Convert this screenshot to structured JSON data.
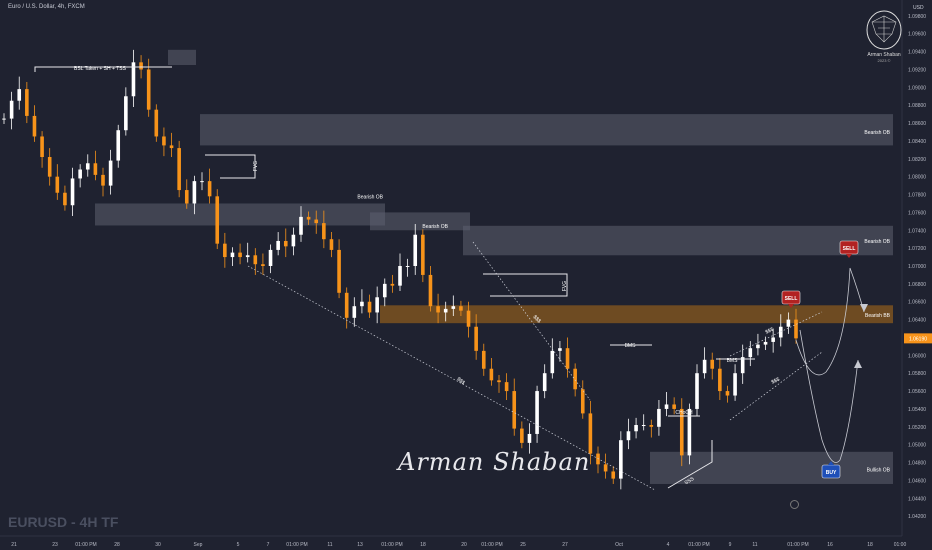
{
  "header": {
    "symbol_title": "Euro / U.S. Dollar, 4h, FXCM",
    "currency": "USD"
  },
  "watermark": "EURUSD - 4H TF",
  "signature": "Arman Shaban",
  "logo": {
    "name": "Arman Shaban",
    "sub": "2023 ©"
  },
  "chart_data": {
    "type": "candlestick",
    "ylim": [
      1.04,
      1.1
    ],
    "y_ticks": [
      "1.09800",
      "1.09600",
      "1.09400",
      "1.09200",
      "1.09000",
      "1.08800",
      "1.08600",
      "1.08400",
      "1.08200",
      "1.08000",
      "1.07800",
      "1.07600",
      "1.07400",
      "1.07200",
      "1.07000",
      "1.06800",
      "1.06600",
      "1.06400",
      "1.06200",
      "1.06000",
      "1.05800",
      "1.05600",
      "1.05400",
      "1.05200",
      "1.05000",
      "1.04800",
      "1.04600",
      "1.04400",
      "1.04200"
    ],
    "x_ticks": [
      "21",
      "23",
      "01:00 PM",
      "28",
      "30",
      "Sep",
      "5",
      "7",
      "01:00 PM",
      "11",
      "13",
      "01:00 PM",
      "18",
      "20",
      "01:00 PM",
      "25",
      "27",
      "Oct",
      "4",
      "01:00 PM",
      "9",
      "11",
      "01:00 PM",
      "16",
      "18",
      "01:00"
    ],
    "last_price": "1.06190",
    "price_path": [
      1.0865,
      1.0885,
      1.0898,
      1.0868,
      1.0845,
      1.0822,
      1.08,
      1.0782,
      1.0768,
      1.0798,
      1.0808,
      1.0815,
      1.0802,
      1.079,
      1.0818,
      1.0852,
      1.089,
      1.0928,
      1.092,
      1.0875,
      1.0845,
      1.0835,
      1.0832,
      1.0785,
      1.077,
      1.0795,
      1.0795,
      1.0778,
      1.0725,
      1.071,
      1.0715,
      1.071,
      1.0712,
      1.0702,
      1.07,
      1.0718,
      1.0728,
      1.0722,
      1.0735,
      1.0755,
      1.0752,
      1.0748,
      1.073,
      1.0718,
      1.067,
      1.0642,
      1.0655,
      1.066,
      1.0648,
      1.0665,
      1.068,
      1.0678,
      1.07,
      1.07,
      1.0735,
      1.069,
      1.0655,
      1.0648,
      1.0652,
      1.0655,
      1.065,
      1.0632,
      1.0605,
      1.0585,
      1.0572,
      1.057,
      1.056,
      1.0518,
      1.0502,
      1.0512,
      1.056,
      1.058,
      1.0605,
      1.0608,
      1.0585,
      1.0562,
      1.0535,
      1.049,
      1.0478,
      1.047,
      1.0462,
      1.0505,
      1.0515,
      1.0522,
      1.0522,
      1.052,
      1.054,
      1.0545,
      1.054,
      1.0488,
      1.054,
      1.058,
      1.0595,
      1.0585,
      1.056,
      1.0555,
      1.058,
      1.0598,
      1.0608,
      1.0612,
      1.0615,
      1.062,
      1.0632,
      1.064,
      1.0619
    ],
    "zones": [
      {
        "label": "Bearish OB",
        "type": "bearish_ob"
      },
      {
        "label": "Bearish OB",
        "type": "bearish_ob"
      },
      {
        "label": "Bearish OB",
        "type": "bearish_ob"
      },
      {
        "label": "Bearish OB",
        "type": "bearish_ob"
      },
      {
        "label": "Bearish BB",
        "type": "bearish_bb"
      },
      {
        "label": "Bullish OB",
        "type": "bullish_ob"
      }
    ],
    "annotations": [
      "BSL Taken + SH + TSS",
      "FVG",
      "FVG",
      "BMS",
      "BMS",
      "CHoCH",
      "$$$",
      "$$$",
      "$$$",
      "$$$",
      "SSS"
    ],
    "signals": [
      {
        "label": "SELL"
      },
      {
        "label": "SELL"
      },
      {
        "label": "BUY"
      }
    ],
    "colors": {
      "background": "#1f2230",
      "bear": "#f7931a",
      "bull": "#ffffff",
      "zone": "#5d6070",
      "bb_zone": "#8a5a1e",
      "sell": "#b22222",
      "buy": "#1e4fb8"
    }
  }
}
